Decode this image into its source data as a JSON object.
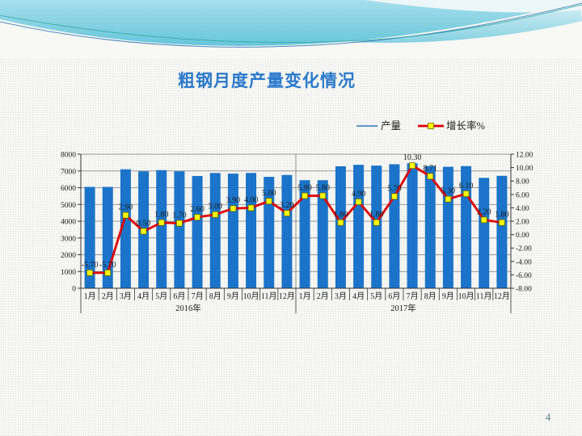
{
  "slide": {
    "title": "粗钢月度产量变化情况",
    "page_number": "4"
  },
  "chart_data": {
    "type": "combo-bar-line",
    "title": "粗钢月度产量变化情况",
    "legend_position": "top-right",
    "legend": [
      "产量",
      "增长率%"
    ],
    "categories": [
      "1月",
      "2月",
      "3月",
      "4月",
      "5月",
      "6月",
      "7月",
      "8月",
      "9月",
      "10月",
      "11月",
      "12月",
      "1月",
      "2月",
      "3月",
      "4月",
      "5月",
      "6月",
      "7月",
      "8月",
      "9月",
      "10月",
      "11月",
      "12月"
    ],
    "category_groups": [
      {
        "label": "2016年",
        "count": 12
      },
      {
        "label": "2017年",
        "count": 12
      }
    ],
    "series": [
      {
        "name": "产量",
        "type": "bar",
        "axis": "left",
        "color": "#1b74c9",
        "values": [
          6050,
          6050,
          7100,
          6980,
          7050,
          6980,
          6700,
          6880,
          6840,
          6880,
          6650,
          6760,
          6450,
          6450,
          7280,
          7370,
          7320,
          7400,
          7460,
          7290,
          7250,
          7290,
          6590,
          6710
        ]
      },
      {
        "name": "增长率%",
        "type": "line",
        "axis": "right",
        "color": "#e00000",
        "marker": {
          "shape": "square",
          "fill": "#ffff00",
          "stroke": "#6b6b00"
        },
        "values": [
          -5.7,
          -5.7,
          2.9,
          0.5,
          1.8,
          1.7,
          2.6,
          3.0,
          3.9,
          4.0,
          5.0,
          3.2,
          5.8,
          5.8,
          1.8,
          4.9,
          1.8,
          5.7,
          10.3,
          8.71,
          5.3,
          6.1,
          2.2,
          1.8
        ],
        "data_labels": [
          "-5.70",
          "-5.70",
          "2.90",
          "0.50",
          "1.80",
          "1.70",
          "2.60",
          "3.00",
          "3.90",
          "4.00",
          "5.00",
          "3.20",
          "5.80",
          "5.80",
          "1.80",
          "4.90",
          "1.80",
          "5.70",
          "10.30",
          "8.71",
          "5.30",
          "6.10",
          "2.20",
          "1.80"
        ]
      }
    ],
    "left_axis": {
      "min": 0,
      "max": 8000,
      "step": 1000,
      "ticks": [
        "0",
        "1000",
        "2000",
        "3000",
        "4000",
        "5000",
        "6000",
        "7000",
        "8000"
      ]
    },
    "right_axis": {
      "min": -8,
      "max": 12,
      "step": 2,
      "ticks": [
        "-8.00",
        "-6.00",
        "-4.00",
        "-2.00",
        "0.00",
        "2.00",
        "4.00",
        "6.00",
        "8.00",
        "10.00",
        "12.00"
      ]
    },
    "grid": {
      "horizontal": true,
      "year_separator": true
    }
  }
}
